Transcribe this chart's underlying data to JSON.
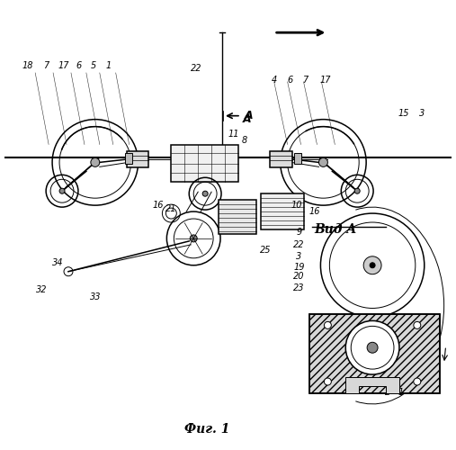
{
  "bg_color": "#ffffff",
  "fig_width": 5.07,
  "fig_height": 5.0,
  "dpi": 100,
  "title": "Фиг. 1",
  "view_label": "Вид A"
}
